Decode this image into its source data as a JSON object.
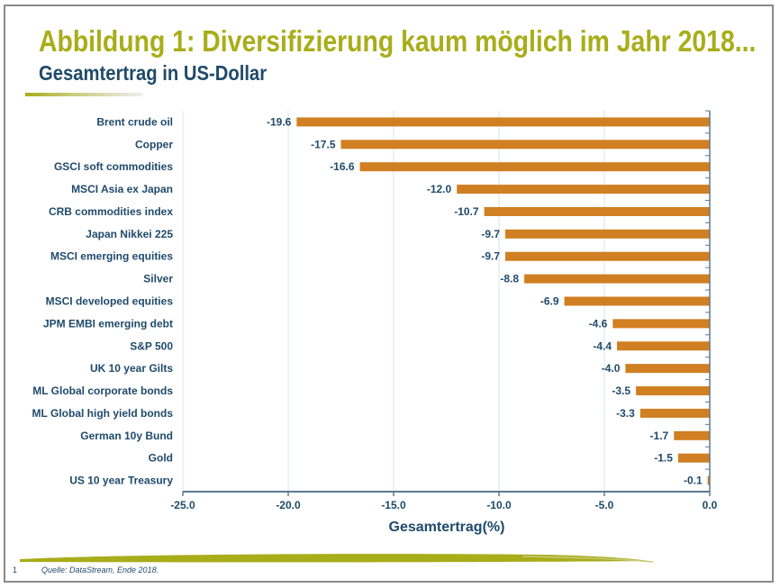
{
  "slide": {
    "title": "Abbildung 1: Diversifizierung kaum möglich im Jahr 2018...",
    "subtitle": "Gesamtertrag in US-Dollar",
    "page_number": "1",
    "source": "Quelle: DataStream, Ende 2018.",
    "colors": {
      "title": "#a8ad1a",
      "text": "#1f4a6a",
      "bar": "#d07f22",
      "grid": "#d6e4ef"
    }
  },
  "chart_data": {
    "type": "bar",
    "orientation": "horizontal",
    "title": "",
    "xlabel": "Gesamtertrag(%)",
    "ylabel": "",
    "xlim": [
      -25.0,
      0.0
    ],
    "xticks": [
      -25.0,
      -20.0,
      -15.0,
      -10.0,
      -5.0,
      0.0
    ],
    "xtick_labels": [
      "-25.0",
      "-20.0",
      "-15.0",
      "-10.0",
      "-5.0",
      "0.0"
    ],
    "grid": "vertical",
    "legend": "none",
    "categories": [
      "Brent crude oil",
      "Copper",
      "GSCI soft commodities",
      "MSCI Asia ex Japan",
      "CRB commodities index",
      "Japan Nikkei 225",
      "MSCI emerging equities",
      "Silver",
      "MSCI developed equities",
      "JPM EMBI emerging debt",
      "S&P 500",
      "UK 10 year Gilts",
      "ML Global corporate bonds",
      "ML Global high yield bonds",
      "German 10y Bund",
      "Gold",
      "US 10 year Treasury"
    ],
    "values": [
      -19.6,
      -17.5,
      -16.6,
      -12.0,
      -10.7,
      -9.7,
      -9.7,
      -8.8,
      -6.9,
      -4.6,
      -4.4,
      -4.0,
      -3.5,
      -3.3,
      -1.7,
      -1.5,
      -0.1
    ],
    "value_labels": [
      "-19.6",
      "-17.5",
      "-16.6",
      "-12.0",
      "-10.7",
      "-9.7",
      "-9.7",
      "-8.8",
      "-6.9",
      "-4.6",
      "-4.4",
      "-4.0",
      "-3.5",
      "-3.3",
      "-1.7",
      "-1.5",
      "-0.1"
    ]
  }
}
